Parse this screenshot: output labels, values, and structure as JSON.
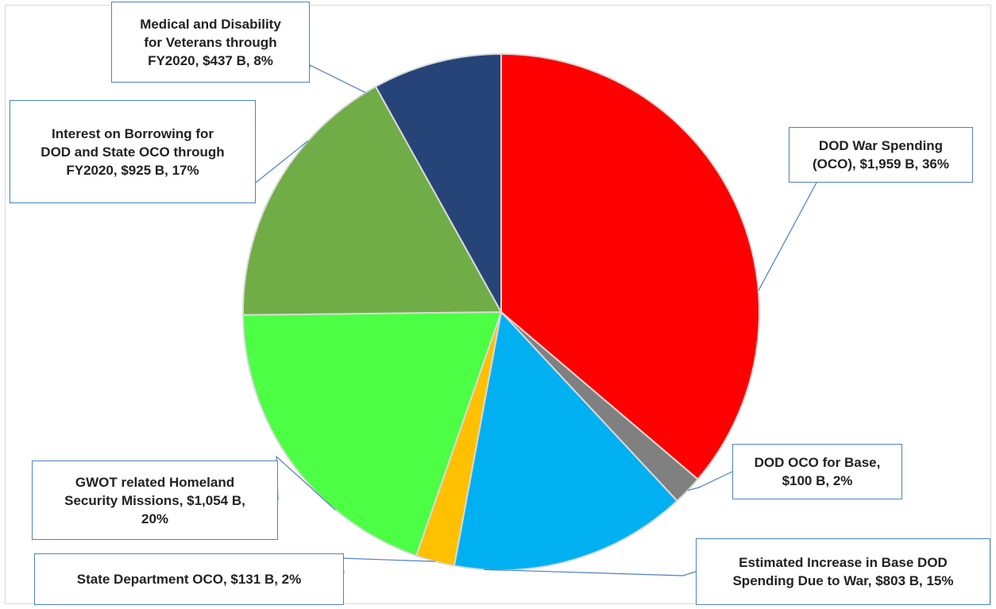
{
  "chart_data": {
    "type": "pie",
    "title": "",
    "start_angle_deg": 0,
    "direction": "clockwise",
    "slices": [
      {
        "label": "DOD War Spending (OCO)",
        "value": 1959,
        "unit": "$B",
        "percent": 36,
        "display": "DOD War Spending (OCO),  $1,959 B, 36%",
        "color": "#ff0000"
      },
      {
        "label": "DOD OCO for Base",
        "value": 100,
        "unit": "$B",
        "percent": 2,
        "display": "DOD OCO for Base,  $100 B, 2%",
        "color": "#808080"
      },
      {
        "label": "Estimated Increase in Base DOD Spending Due to War",
        "value": 803,
        "unit": "$B",
        "percent": 15,
        "display": "Estimated Increase in Base DOD Spending Due to War,  $803 B, 15%",
        "color": "#00b0f0"
      },
      {
        "label": "State Department OCO",
        "value": 131,
        "unit": "$B",
        "percent": 2,
        "display": "State Department OCO,  $131 B, 2%",
        "color": "#ffc000"
      },
      {
        "label": "GWOT related Homeland Security Missions",
        "value": 1054,
        "unit": "$B",
        "percent": 20,
        "display": "GWOT related Homeland Security Missions,  $1,054 B, 20%",
        "color": "#4cff45"
      },
      {
        "label": "Interest on Borrowing for DOD and State OCO through FY2020",
        "value": 925,
        "unit": "$B",
        "percent": 17,
        "display": "Interest on Borrowing for DOD and State OCO through FY2020,  $925 B, 17%",
        "color": "#70ad47"
      },
      {
        "label": "Medical and Disability for Veterans through FY2020",
        "value": 437,
        "unit": "$B",
        "percent": 8,
        "display": "Medical and Disability for Veterans through FY2020,  $437 B, 8%",
        "color": "#264478"
      }
    ]
  },
  "labels": [
    {
      "lines": [
        "DOD War Spending",
        "(OCO),  $1,959 B, 36%"
      ]
    },
    {
      "lines": [
        "DOD OCO for Base,",
        "$100 B, 2%"
      ]
    },
    {
      "lines": [
        "Estimated Increase in Base DOD",
        "Spending Due to War,  $803 B, 15%"
      ]
    },
    {
      "lines": [
        "State Department OCO,  $131 B, 2%"
      ]
    },
    {
      "lines": [
        "GWOT related Homeland",
        "Security Missions,  $1,054 B,",
        "20%"
      ]
    },
    {
      "lines": [
        "Interest on Borrowing for",
        "DOD and State OCO through",
        "FY2020,  $925 B, 17%"
      ]
    },
    {
      "lines": [
        "Medical and Disability",
        "for Veterans through",
        "FY2020,  $437 B, 8%"
      ]
    }
  ]
}
